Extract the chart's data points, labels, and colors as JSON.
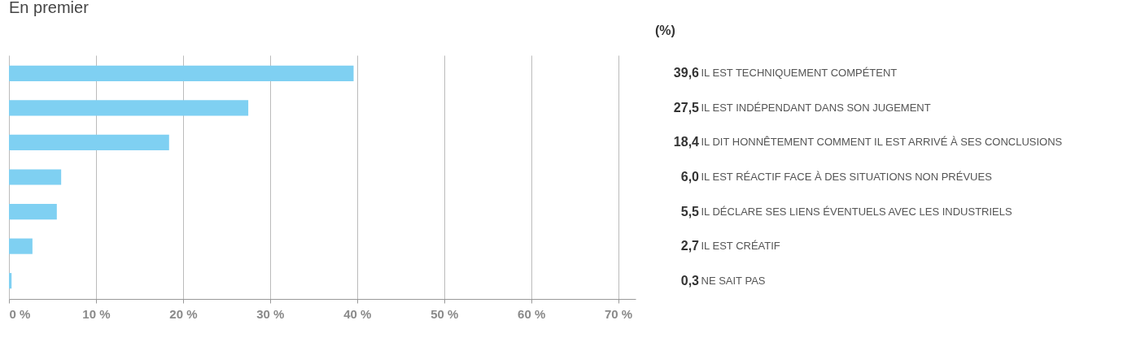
{
  "chart_data": {
    "type": "bar",
    "orientation": "horizontal",
    "title": "En premier",
    "annotations": [
      "(%)"
    ],
    "categories": [
      "IL EST TECHNIQUEMENT COMPÉTENT",
      "IL EST INDÉPENDANT DANS SON JUGEMENT",
      "IL DIT HONNÊTEMENT COMMENT IL EST ARRIVÉ À SES CONCLUSIONS",
      "IL EST RÉACTIF FACE À DES SITUATIONS NON PRÉVUES",
      "IL DÉCLARE SES LIENS ÉVENTUELS AVEC LES INDUSTRIELS",
      "IL EST CRÉATIF",
      "NE SAIT PAS"
    ],
    "values": [
      39.6,
      27.5,
      18.4,
      6.0,
      5.5,
      2.7,
      0.3
    ],
    "value_labels": [
      "39,6",
      "27,5",
      "18,4",
      "6,0",
      "5,5",
      "2,7",
      "0,3"
    ],
    "color": "#7fd0f2",
    "xlim": [
      0,
      72
    ],
    "xticks": [
      {
        "value": 0,
        "label": "0 %"
      },
      {
        "value": 10,
        "label": "10 %"
      },
      {
        "value": 20,
        "label": "20 %"
      },
      {
        "value": 30,
        "label": "30 %"
      },
      {
        "value": 40,
        "label": "40 %"
      },
      {
        "value": 50,
        "label": "50 %"
      },
      {
        "value": 60,
        "label": "60 %"
      },
      {
        "value": 70,
        "label": "70 %"
      }
    ],
    "grid": "x"
  }
}
